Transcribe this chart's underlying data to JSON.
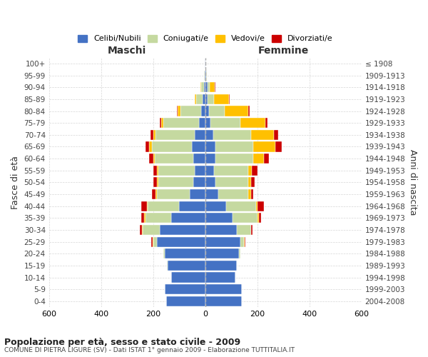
{
  "age_groups": [
    "0-4",
    "5-9",
    "10-14",
    "15-19",
    "20-24",
    "25-29",
    "30-34",
    "35-39",
    "40-44",
    "45-49",
    "50-54",
    "55-59",
    "60-64",
    "65-69",
    "70-74",
    "75-79",
    "80-84",
    "85-89",
    "90-94",
    "95-99",
    "100+"
  ],
  "birth_years": [
    "2004-2008",
    "1999-2003",
    "1994-1998",
    "1989-1993",
    "1984-1988",
    "1979-1983",
    "1974-1978",
    "1969-1973",
    "1964-1968",
    "1959-1963",
    "1954-1958",
    "1949-1953",
    "1944-1948",
    "1939-1943",
    "1934-1938",
    "1929-1933",
    "1924-1928",
    "1919-1923",
    "1914-1918",
    "1909-1913",
    "≤ 1908"
  ],
  "male": {
    "celibi": [
      150,
      155,
      130,
      145,
      155,
      185,
      175,
      130,
      100,
      60,
      45,
      40,
      45,
      50,
      40,
      25,
      15,
      10,
      5,
      2,
      2
    ],
    "coniugati": [
      0,
      0,
      0,
      2,
      5,
      15,
      65,
      100,
      120,
      125,
      135,
      140,
      150,
      155,
      150,
      135,
      80,
      25,
      10,
      2,
      0
    ],
    "vedovi": [
      0,
      0,
      0,
      0,
      0,
      2,
      2,
      5,
      5,
      5,
      5,
      5,
      5,
      10,
      10,
      10,
      10,
      5,
      2,
      0,
      0
    ],
    "divorziati": [
      0,
      0,
      0,
      0,
      0,
      5,
      10,
      10,
      20,
      15,
      15,
      15,
      15,
      15,
      10,
      5,
      5,
      0,
      0,
      0,
      0
    ]
  },
  "female": {
    "nubili": [
      140,
      140,
      115,
      120,
      130,
      135,
      120,
      105,
      80,
      50,
      40,
      35,
      40,
      40,
      30,
      20,
      15,
      10,
      8,
      3,
      2
    ],
    "coniugate": [
      0,
      0,
      0,
      2,
      5,
      15,
      55,
      95,
      115,
      115,
      125,
      130,
      145,
      145,
      145,
      115,
      60,
      25,
      8,
      2,
      0
    ],
    "vedove": [
      0,
      0,
      0,
      0,
      0,
      2,
      2,
      5,
      5,
      10,
      10,
      15,
      40,
      85,
      90,
      95,
      90,
      55,
      20,
      2,
      0
    ],
    "divorziate": [
      0,
      0,
      0,
      0,
      0,
      2,
      5,
      10,
      25,
      10,
      15,
      20,
      20,
      25,
      15,
      10,
      5,
      5,
      2,
      0,
      0
    ]
  },
  "colors": {
    "celibi": "#4472c4",
    "coniugati": "#c5d9a0",
    "vedovi": "#ffc000",
    "divorziati": "#cc0000"
  },
  "legend_labels": [
    "Celibi/Nubili",
    "Coniugati/e",
    "Vedovi/e",
    "Divorziati/e"
  ],
  "xlabel_left": "Maschi",
  "xlabel_right": "Femmine",
  "ylabel_left": "Fasce di età",
  "ylabel_right": "Anni di nascita",
  "title": "Popolazione per età, sesso e stato civile - 2009",
  "subtitle": "COMUNE DI PIETRA LIGURE (SV) - Dati ISTAT 1° gennaio 2009 - Elaborazione TUTTITALIA.IT",
  "xlim": 600,
  "background_color": "#ffffff",
  "grid_color": "#cccccc"
}
